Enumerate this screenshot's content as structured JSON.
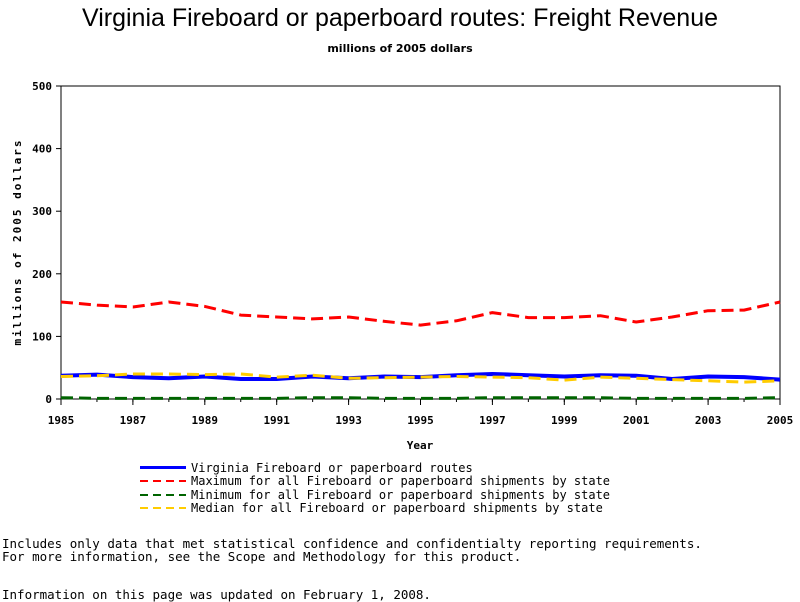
{
  "chart_data": {
    "type": "line",
    "title": "Virginia Fireboard or paperboard routes: Freight Revenue",
    "subtitle": "millions of 2005 dollars",
    "xlabel": "Year",
    "ylabel": "millions of 2005 dollars",
    "xlim": [
      1985,
      2005
    ],
    "ylim": [
      0,
      500
    ],
    "x_ticks": [
      "1985",
      "1987",
      "1989",
      "1991",
      "1993",
      "1995",
      "1997",
      "1999",
      "2001",
      "2003",
      "2005"
    ],
    "y_ticks": [
      "0",
      "100",
      "200",
      "300",
      "400",
      "500"
    ],
    "x": [
      1985,
      1986,
      1987,
      1988,
      1989,
      1990,
      1991,
      1992,
      1993,
      1994,
      1995,
      1996,
      1997,
      1998,
      1999,
      2000,
      2001,
      2002,
      2003,
      2004,
      2005
    ],
    "grid": false,
    "legend_position": "bottom",
    "series": [
      {
        "name": "Virginia Fireboard or paperboard routes",
        "color": "#0000ff",
        "style": "solid",
        "values": [
          37,
          39,
          35,
          33,
          36,
          32,
          32,
          36,
          33,
          36,
          35,
          38,
          40,
          38,
          36,
          38,
          37,
          32,
          36,
          35,
          31
        ]
      },
      {
        "name": "Maximum for all Fireboard or paperboard shipments by state",
        "color": "#ff0000",
        "style": "dashed",
        "values": [
          155,
          150,
          147,
          155,
          148,
          134,
          131,
          128,
          131,
          124,
          118,
          125,
          138,
          130,
          130,
          133,
          123,
          131,
          141,
          142,
          155
        ]
      },
      {
        "name": "Minimum for all Fireboard or paperboard shipments by state",
        "color": "#006400",
        "style": "dashed",
        "values": [
          2,
          1,
          1,
          1,
          1,
          1,
          1,
          2,
          2,
          1,
          1,
          1,
          2,
          2,
          2,
          2,
          1,
          1,
          1,
          1,
          2
        ]
      },
      {
        "name": "Median for all Fireboard or paperboard shipments by state",
        "color": "#ffcc00",
        "style": "dashed",
        "values": [
          36,
          37,
          40,
          40,
          39,
          40,
          35,
          38,
          33,
          34,
          35,
          36,
          35,
          34,
          30,
          35,
          33,
          31,
          29,
          27,
          29
        ]
      }
    ]
  },
  "footnotes": {
    "line1": "Includes only data that met statistical confidence and confidentialty reporting requirements.",
    "line2": "For more information, see the Scope and Methodology for this product.",
    "line3": "Information on this page was updated on February 1, 2008."
  }
}
